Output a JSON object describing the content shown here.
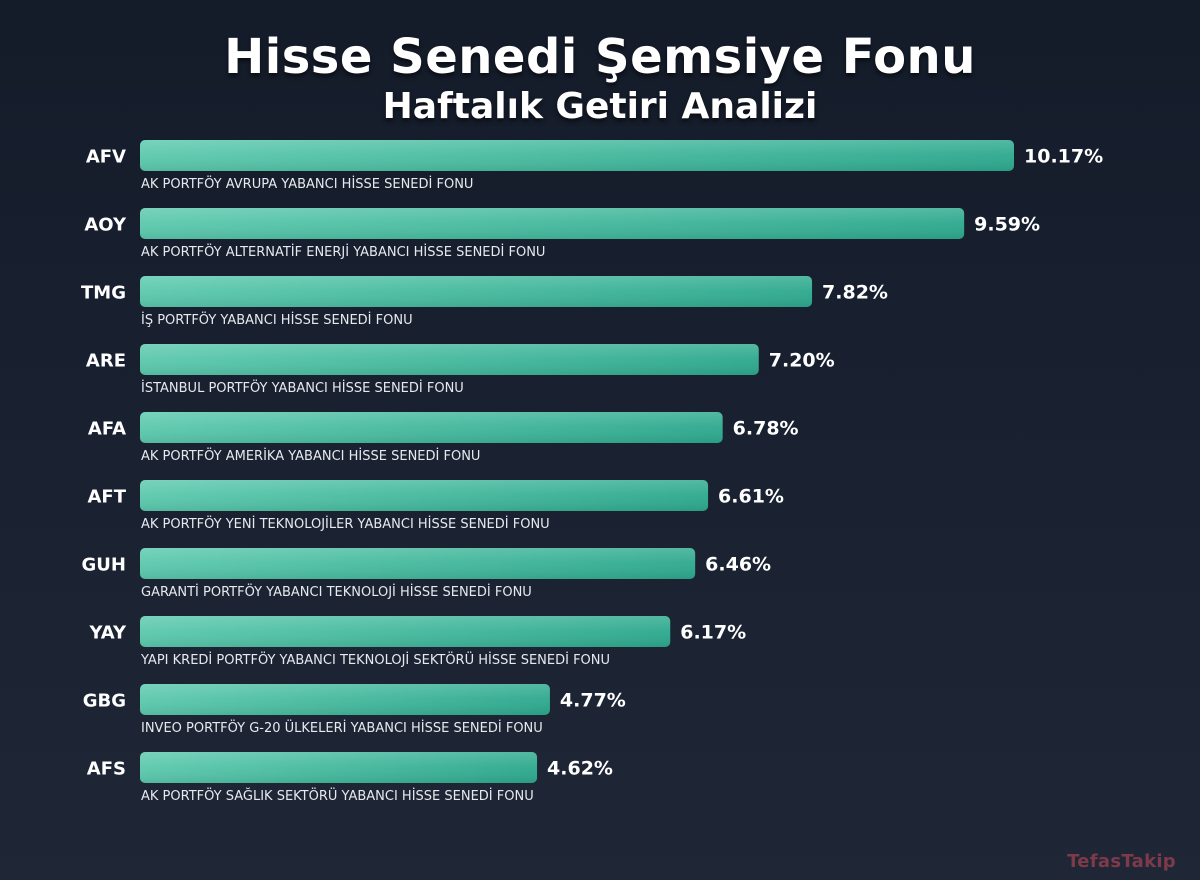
{
  "title": "Hisse Senedi Şemsiye Fonu",
  "subtitle": "Haftalık Getiri Analizi",
  "watermark": "TefasTakip",
  "colors": {
    "bar_start": "#5cc9ad",
    "bar_end": "#2ea98e",
    "label": "#ffffff",
    "fund_name": "#e6e9ee"
  },
  "chart_data": {
    "type": "bar",
    "orientation": "horizontal",
    "unit": "%",
    "title": "Hisse Senedi Şemsiye Fonu",
    "subtitle": "Haftalık Getiri Analizi",
    "xlabel": "",
    "ylabel": "",
    "grid": false,
    "legend": "none",
    "xlim": [
      0,
      10.17
    ],
    "categories": [
      "AFV",
      "AOY",
      "TMG",
      "ARE",
      "AFA",
      "AFT",
      "GUH",
      "YAY",
      "GBG",
      "AFS"
    ],
    "fund_names": [
      "AK PORTFÖY AVRUPA YABANCI HİSSE SENEDİ FONU",
      "AK PORTFÖY ALTERNATİF ENERJİ YABANCI HİSSE SENEDİ FONU",
      "İŞ PORTFÖY YABANCI HİSSE SENEDİ FONU",
      "İSTANBUL PORTFÖY YABANCI HİSSE SENEDİ FONU",
      "AK PORTFÖY AMERİKA YABANCI HİSSE SENEDİ FONU",
      "AK PORTFÖY YENİ TEKNOLOJİLER YABANCI HİSSE SENEDİ FONU",
      "GARANTİ PORTFÖY YABANCI TEKNOLOJİ HİSSE SENEDİ FONU",
      "YAPI KREDİ PORTFÖY YABANCI TEKNOLOJİ SEKTÖRÜ HİSSE SENEDİ FONU",
      "INVEO PORTFÖY G-20 ÜLKELERİ YABANCI HİSSE SENEDİ FONU",
      "AK PORTFÖY SAĞLIK SEKTÖRÜ YABANCI HİSSE SENEDİ FONU"
    ],
    "values": [
      10.17,
      9.59,
      7.82,
      7.2,
      6.78,
      6.61,
      6.46,
      6.17,
      4.77,
      4.62
    ],
    "value_labels": [
      "10.17%",
      "9.59%",
      "7.82%",
      "7.20%",
      "6.78%",
      "6.61%",
      "6.46%",
      "6.17%",
      "4.77%",
      "4.62%"
    ]
  }
}
